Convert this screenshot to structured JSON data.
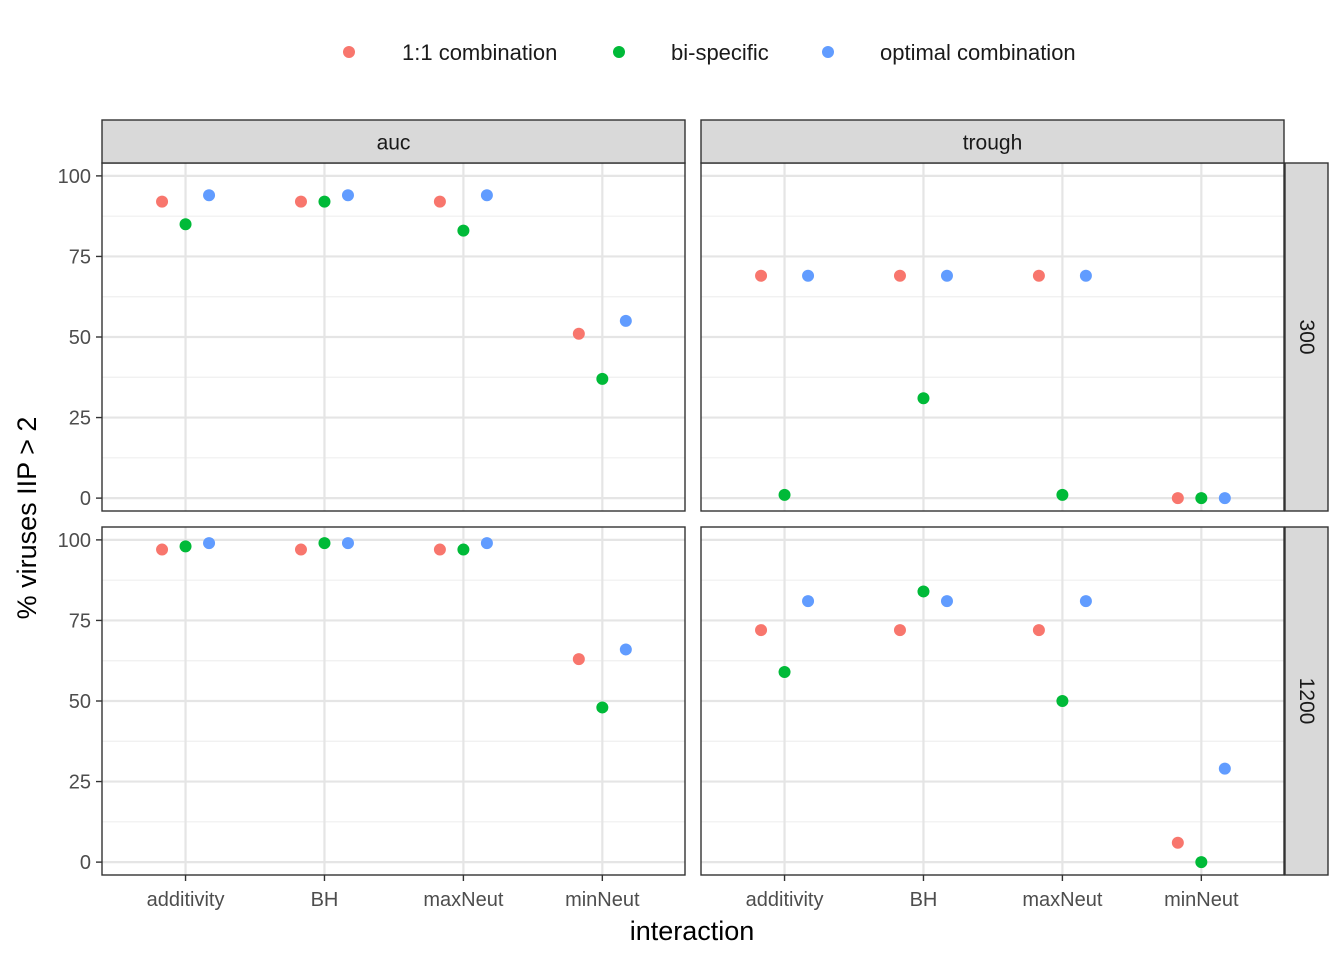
{
  "chart_data": {
    "type": "scatter",
    "facet_cols": [
      "auc",
      "trough"
    ],
    "facet_rows": [
      "300",
      "1200"
    ],
    "categories": [
      "additivity",
      "BH",
      "maxNeut",
      "minNeut"
    ],
    "xlabel": "interaction",
    "ylabel": "% viruses IIP > 2",
    "yticks": [
      0,
      25,
      50,
      75,
      100
    ],
    "ylim": [
      -4,
      104
    ],
    "grid": true,
    "legend_position": "top",
    "series": [
      {
        "name": "1:1 combination",
        "color": "#F8766D",
        "panels": {
          "auc-300": [
            92,
            92,
            92,
            51
          ],
          "trough-300": [
            69,
            69,
            69,
            0
          ],
          "auc-1200": [
            97,
            97,
            97,
            63
          ],
          "trough-1200": [
            72,
            72,
            72,
            6
          ]
        }
      },
      {
        "name": "bi-specific",
        "color": "#00BA38",
        "panels": {
          "auc-300": [
            85,
            92,
            83,
            37
          ],
          "trough-300": [
            1,
            31,
            1,
            0
          ],
          "auc-1200": [
            98,
            99,
            97,
            48
          ],
          "trough-1200": [
            59,
            84,
            50,
            0
          ]
        }
      },
      {
        "name": "optimal combination",
        "color": "#619CFF",
        "panels": {
          "auc-300": [
            94,
            94,
            94,
            55
          ],
          "trough-300": [
            69,
            69,
            69,
            0
          ],
          "auc-1200": [
            99,
            99,
            99,
            66
          ],
          "trough-1200": [
            81,
            81,
            81,
            29
          ]
        }
      }
    ]
  }
}
